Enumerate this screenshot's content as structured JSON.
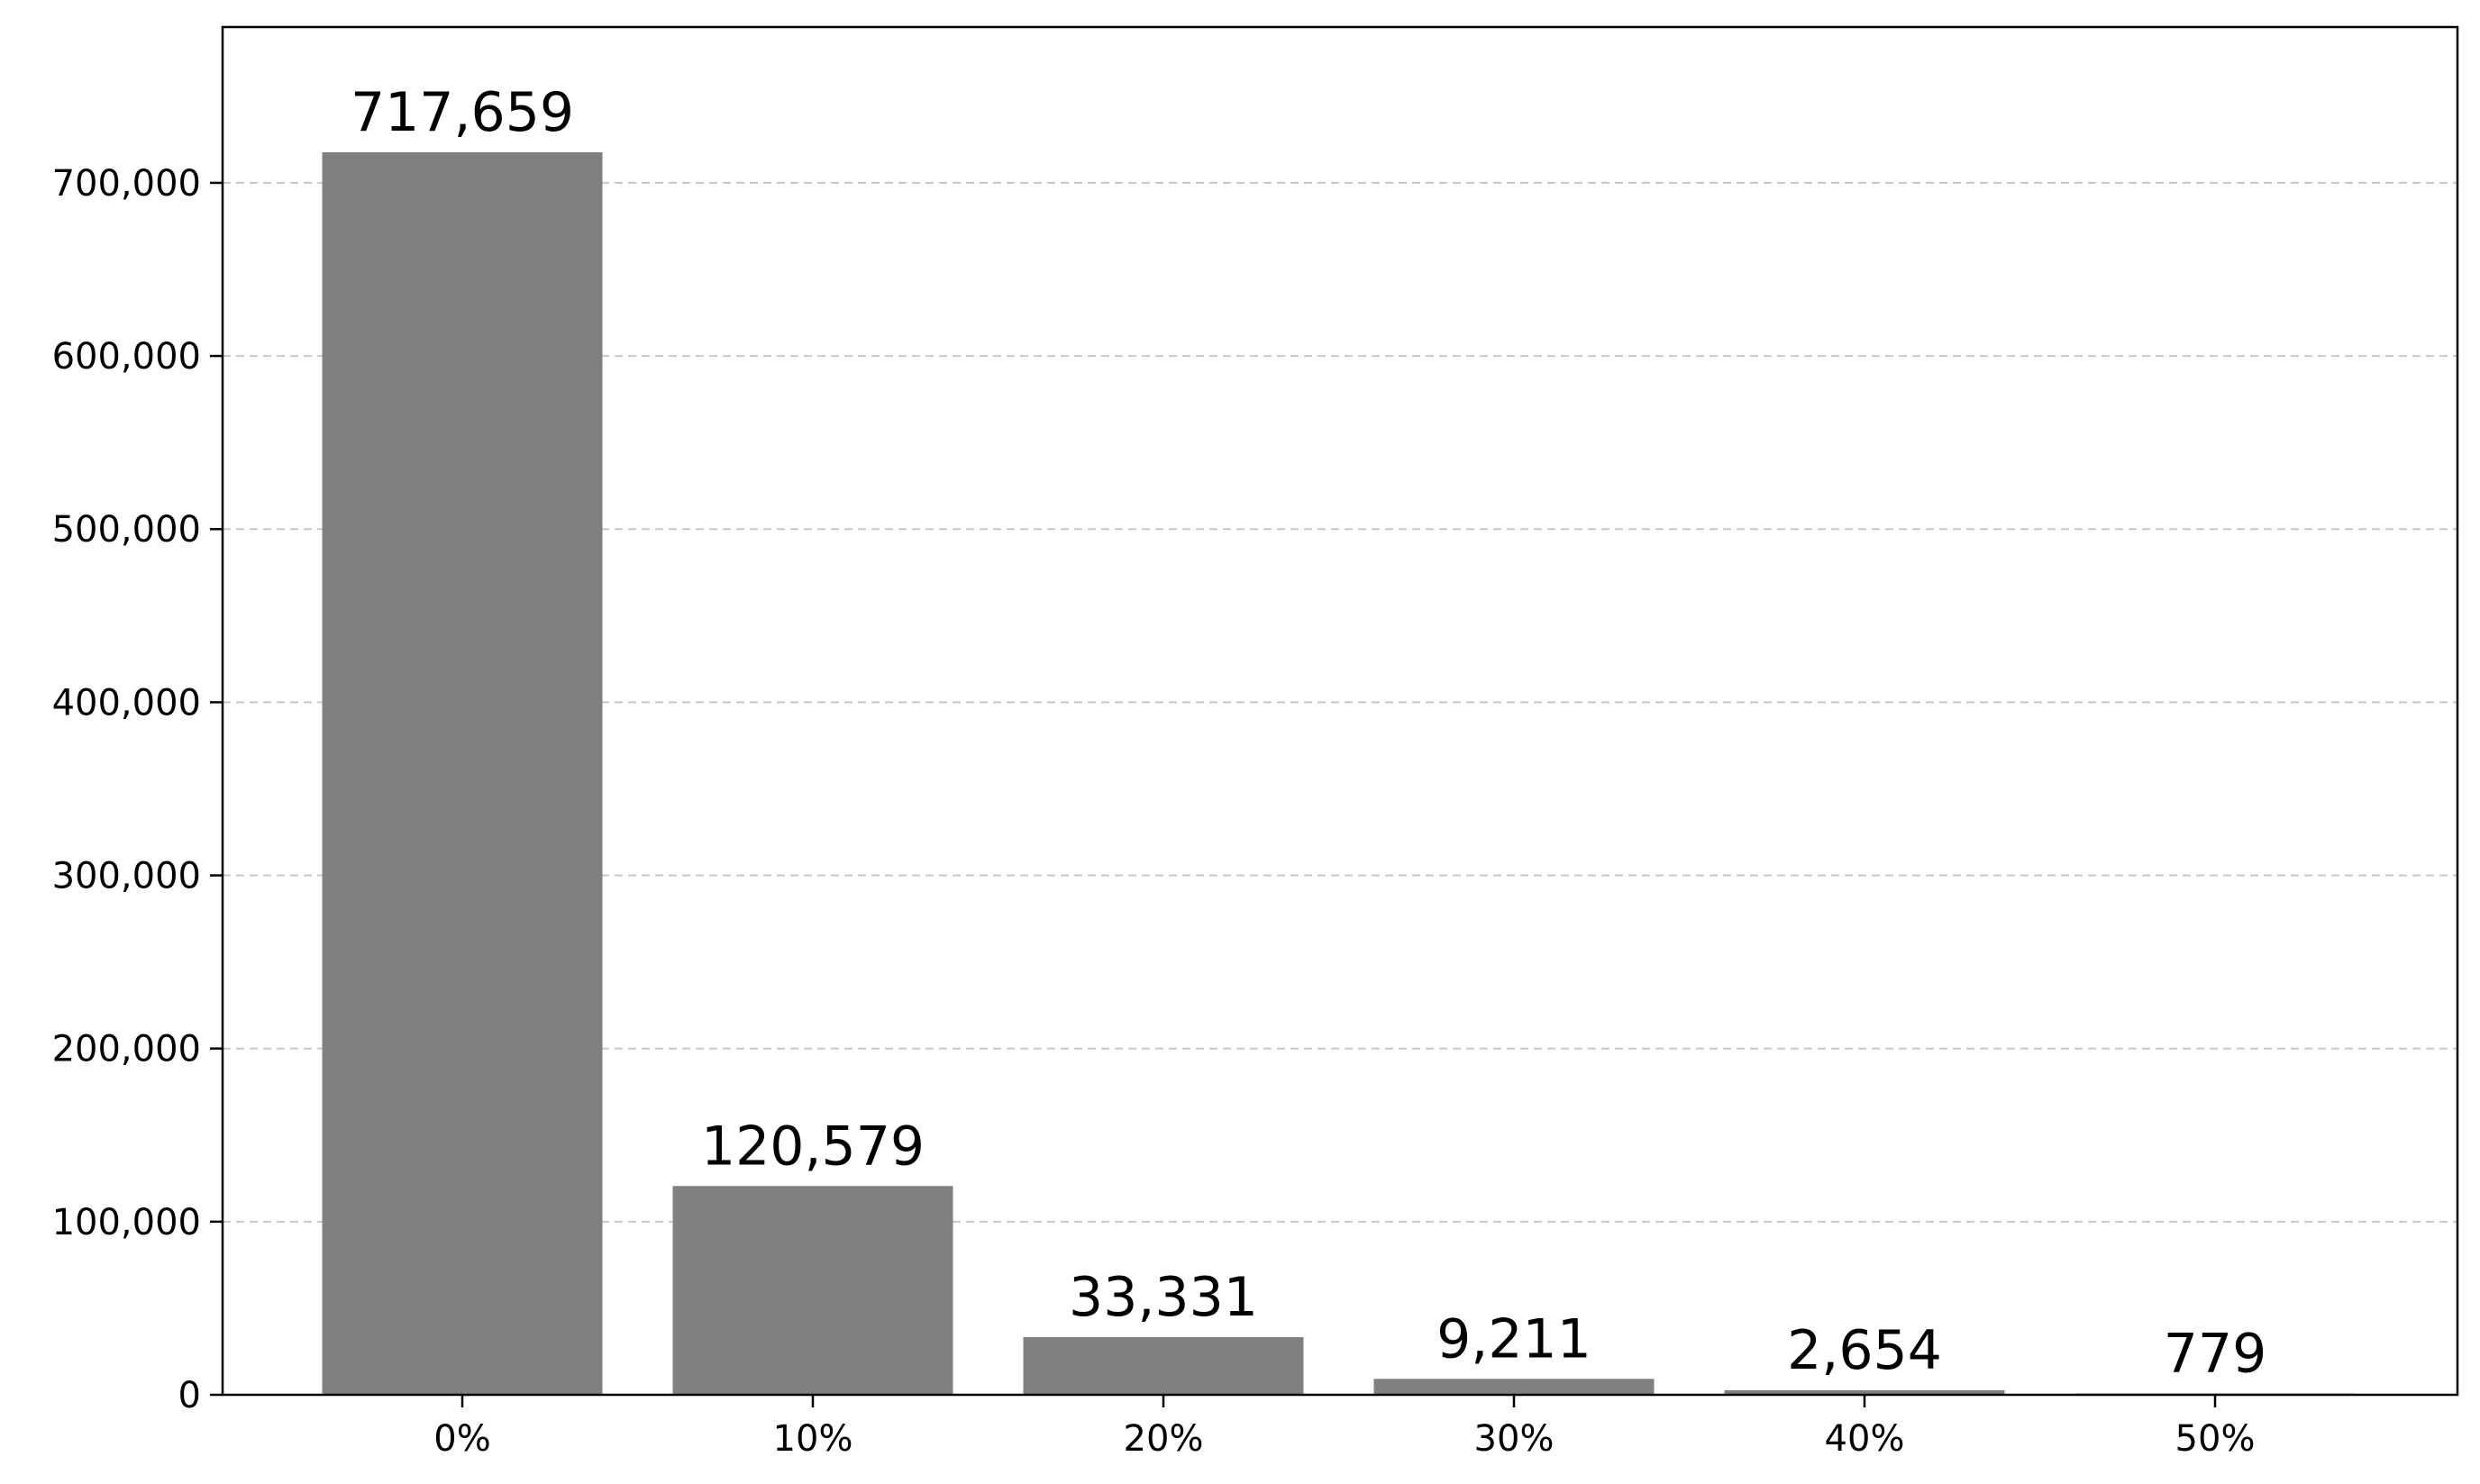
{
  "chart_data": {
    "type": "bar",
    "categories": [
      "0%",
      "10%",
      "20%",
      "30%",
      "40%",
      "50%"
    ],
    "values": [
      717659,
      120579,
      33331,
      9211,
      2654,
      779
    ],
    "data_labels": [
      "717,659",
      "120,579",
      "33,331",
      "9,211",
      "2,654",
      "779"
    ],
    "title": "",
    "xlabel": "",
    "ylabel": "",
    "ylim": [
      0,
      790000
    ],
    "yticks": [
      0,
      100000,
      200000,
      300000,
      400000,
      500000,
      600000,
      700000
    ],
    "ytick_labels": [
      "0",
      "100,000",
      "200,000",
      "300,000",
      "400,000",
      "500,000",
      "600,000",
      "700,000"
    ],
    "grid": "y-dashed",
    "legend": "none",
    "bar_color": "#808080",
    "grid_color": "#c8c8c8"
  }
}
